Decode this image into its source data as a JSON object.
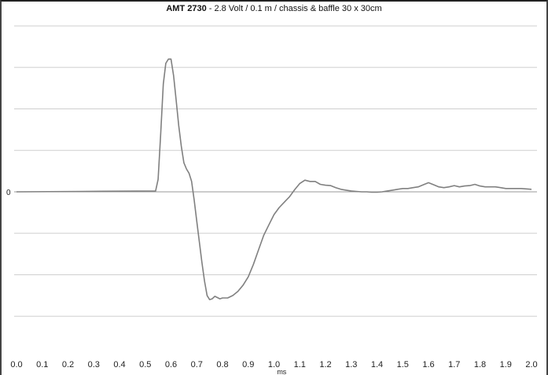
{
  "chart_data": {
    "type": "line",
    "title_bold": "AMT 2730",
    "title_rest": " - 2.8 Volt / 0.1 m  / chassis & baffle 30 x 30cm",
    "xlabel": "ms",
    "ylabel": "",
    "xlim": [
      0,
      2.0
    ],
    "ylim": [
      -4,
      4
    ],
    "x_ticks": [
      "0.0",
      "0.1",
      "0.2",
      "0.3",
      "0.4",
      "0.5",
      "0.6",
      "0.7",
      "0.8",
      "0.9",
      "1.0",
      "1.1",
      "1.2",
      "1.3",
      "1.4",
      "1.5",
      "1.6",
      "1.7",
      "1.8",
      "1.9",
      "2.0"
    ],
    "y_tick_label_zero": "0",
    "grid": true,
    "series": [
      {
        "color": "#808080",
        "x": [
          0.0,
          0.25,
          0.54,
          0.55,
          0.56,
          0.57,
          0.58,
          0.59,
          0.6,
          0.61,
          0.62,
          0.63,
          0.64,
          0.65,
          0.66,
          0.67,
          0.68,
          0.69,
          0.7,
          0.71,
          0.72,
          0.73,
          0.74,
          0.75,
          0.76,
          0.77,
          0.78,
          0.79,
          0.8,
          0.82,
          0.84,
          0.86,
          0.88,
          0.9,
          0.92,
          0.94,
          0.96,
          0.98,
          1.0,
          1.02,
          1.04,
          1.06,
          1.08,
          1.1,
          1.12,
          1.14,
          1.16,
          1.18,
          1.2,
          1.22,
          1.24,
          1.26,
          1.28,
          1.3,
          1.32,
          1.34,
          1.36,
          1.38,
          1.4,
          1.42,
          1.44,
          1.46,
          1.48,
          1.5,
          1.52,
          1.54,
          1.56,
          1.58,
          1.6,
          1.62,
          1.64,
          1.66,
          1.68,
          1.7,
          1.72,
          1.74,
          1.76,
          1.78,
          1.8,
          1.82,
          1.84,
          1.86,
          1.88,
          1.9,
          1.92,
          1.94,
          1.96,
          1.98,
          2.0
        ],
        "y": [
          0.0,
          0.01,
          0.02,
          0.3,
          1.4,
          2.6,
          3.1,
          3.2,
          3.2,
          2.8,
          2.2,
          1.6,
          1.1,
          0.7,
          0.55,
          0.45,
          0.25,
          -0.2,
          -0.7,
          -1.2,
          -1.7,
          -2.15,
          -2.5,
          -2.6,
          -2.58,
          -2.52,
          -2.55,
          -2.58,
          -2.56,
          -2.56,
          -2.5,
          -2.4,
          -2.25,
          -2.05,
          -1.75,
          -1.4,
          -1.05,
          -0.8,
          -0.55,
          -0.38,
          -0.25,
          -0.12,
          0.05,
          0.2,
          0.28,
          0.25,
          0.25,
          0.18,
          0.16,
          0.15,
          0.1,
          0.06,
          0.04,
          0.02,
          0.01,
          0.0,
          0.0,
          -0.01,
          -0.01,
          0.0,
          0.02,
          0.04,
          0.06,
          0.08,
          0.08,
          0.1,
          0.12,
          0.17,
          0.22,
          0.17,
          0.12,
          0.1,
          0.12,
          0.15,
          0.12,
          0.14,
          0.15,
          0.18,
          0.14,
          0.12,
          0.12,
          0.12,
          0.1,
          0.08,
          0.08,
          0.08,
          0.08,
          0.07,
          0.06
        ]
      }
    ]
  }
}
